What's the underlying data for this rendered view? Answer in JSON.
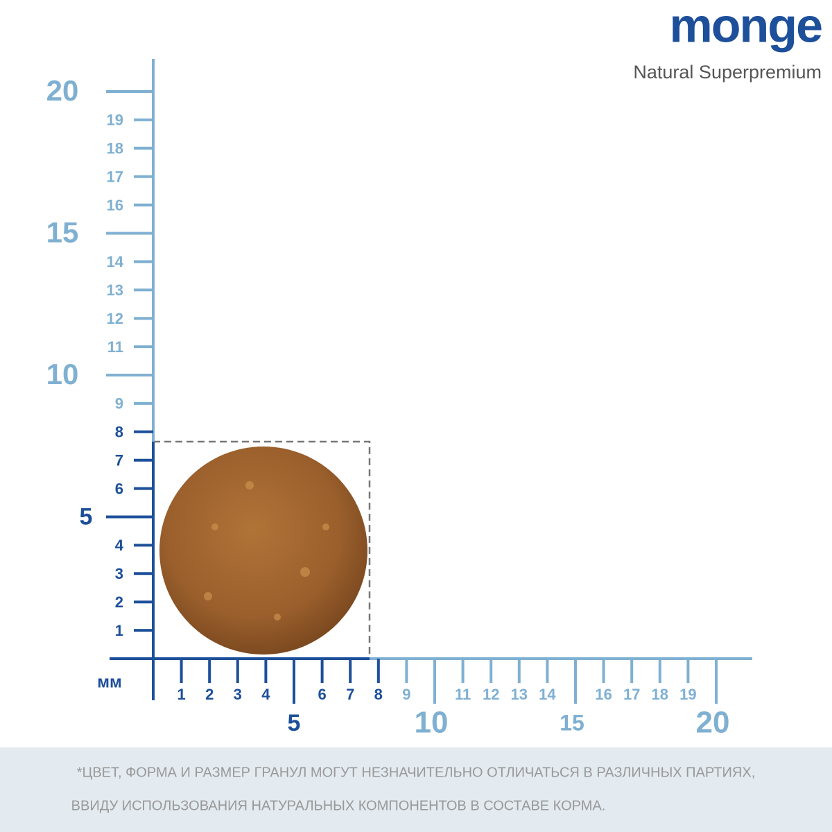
{
  "brand": {
    "name": "monge",
    "tagline": "Natural Superpremium"
  },
  "ruler": {
    "unit": "мм",
    "marks": [
      "1",
      "2",
      "3",
      "4",
      "5",
      "6",
      "7",
      "8",
      "9",
      "10",
      "11",
      "12",
      "13",
      "14",
      "15",
      "16",
      "17",
      "18",
      "19",
      "20"
    ]
  },
  "footnote": [
    "*ЦВЕТ, ФОРМА И РАЗМЕР ГРАНУЛ МОГУТ НЕЗНАЧИТЕЛЬНО ОТЛИЧАТЬСЯ В РАЗЛИЧНЫХ ПАРТИЯХ,",
    "ВВИДУ ИСПОЛЬЗОВАНИЯ НАТУРАЛЬНЫХ КОМПОНЕНТОВ В СОСТАВЕ КОРМА."
  ]
}
